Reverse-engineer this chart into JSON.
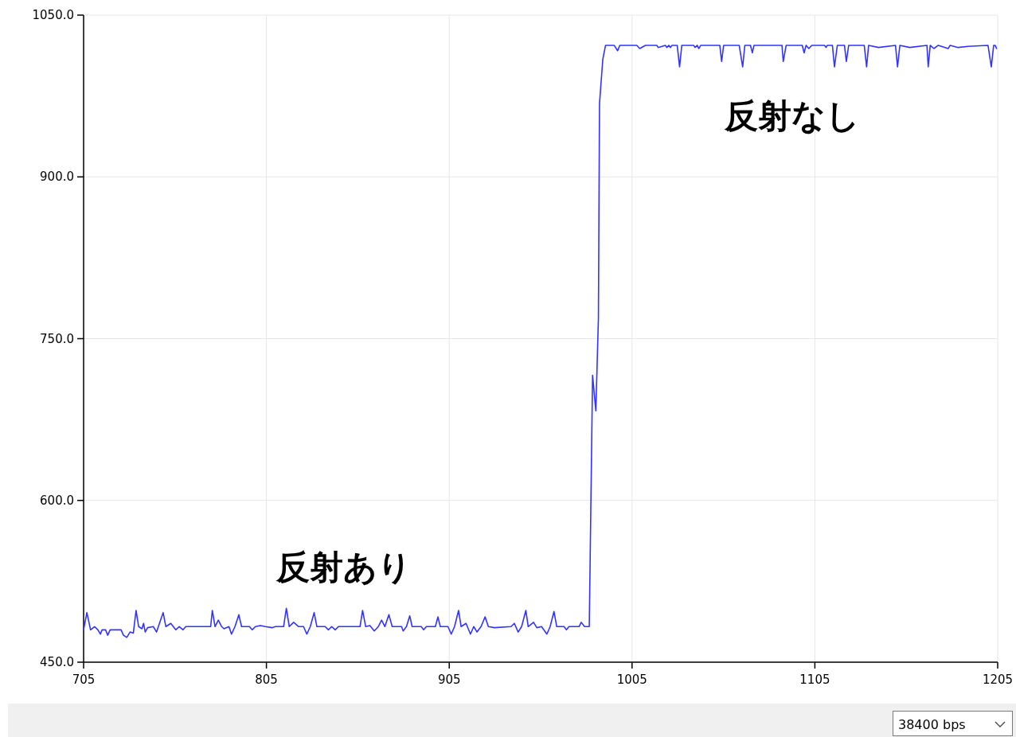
{
  "chart_data": {
    "type": "line",
    "series": [
      {
        "color": "#3333ff",
        "x": [
          705,
          706.8,
          708.8,
          711.0,
          712.8,
          714.2,
          715.1,
          717.0,
          718.2,
          719.5,
          725.5,
          726.8,
          728.6,
          730.4,
          732.2,
          733.7,
          735.1,
          736.9,
          737.8,
          738.7,
          740.0,
          743.1,
          744.9,
          748.5,
          750.0,
          752.7,
          755.4,
          757.3,
          759.4,
          760.9,
          774.5,
          775.4,
          776.9,
          778.7,
          780.5,
          781.8,
          784.5,
          785.9,
          787.8,
          789.9,
          791.4,
          795.7,
          797.2,
          799.0,
          801.7,
          804.4,
          808.1,
          809.9,
          814.4,
          815.9,
          817.5,
          819.9,
          822.6,
          825.3,
          827.1,
          829.0,
          831.1,
          832.6,
          837.1,
          838.9,
          840.7,
          842.6,
          844.4,
          856.2,
          857.6,
          859.3,
          861.6,
          864.0,
          866.2,
          868.0,
          869.8,
          872.0,
          873.8,
          878.9,
          879.8,
          881.6,
          883.4,
          884.7,
          889.7,
          891.0,
          892.5,
          897.4,
          898.8,
          900.1,
          904.3,
          906.1,
          907.9,
          910.1,
          911.5,
          914.2,
          916.6,
          918.4,
          920.2,
          922.4,
          924.6,
          926.4,
          929.7,
          938.8,
          940.6,
          942.7,
          944.6,
          946.9,
          948.2,
          951.1,
          952.9,
          955.5,
          958.4,
          960.2,
          962.3,
          963.8,
          967.8,
          969.1,
          970.5,
          976.0,
          977.2,
          979.0,
          981.6,
          983.4,
          985.2,
          986.6,
          987.2,
          989.0,
          990.5,
          995.2,
          997.1,
          998.3,
          1007.6,
          1009.2,
          1012.3,
          1018.5,
          1019.3,
          1023.2,
          1024.0,
          1025.1,
          1026.0,
          1026.8,
          1029.7,
          1031.0,
          1032.2,
          1038.7,
          1039.5,
          1040.6,
          1041.5,
          1042.6,
          1053.0,
          1054.0,
          1055.1,
          1063.6,
          1065.5,
          1066.7,
          1069.8,
          1070.8,
          1071.7,
          1087.0,
          1087.7,
          1089.3,
          1098.1,
          1099.1,
          1100.2,
          1101.7,
          1103.3,
          1110.3,
          1111.1,
          1111.8,
          1114.6,
          1115.7,
          1117.3,
          1121.2,
          1122.2,
          1123.5,
          1132.0,
          1133.3,
          1134.4,
          1139.8,
          1149.1,
          1150.2,
          1151.5,
          1156.9,
          1166.3,
          1167.0,
          1168.1,
          1170.1,
          1172.5,
          1177.9,
          1179.0,
          1183.4,
          1188.8,
          1199.7,
          1201.5,
          1202.8,
          1203.6,
          1204.4
        ],
        "values": [
          480,
          496,
          480,
          483,
          480,
          476,
          480,
          480,
          475,
          480,
          480,
          475,
          473,
          478,
          477,
          498,
          483,
          481,
          486,
          478,
          482,
          483,
          478,
          496,
          483,
          486,
          480,
          483,
          480,
          483,
          483,
          498,
          483,
          489,
          483,
          481,
          483,
          476,
          483,
          494,
          483,
          483,
          480,
          483,
          484,
          483,
          482,
          483,
          483,
          500,
          483,
          487,
          483,
          483,
          476,
          483,
          496,
          483,
          483,
          480,
          483,
          480,
          483,
          483,
          498,
          483,
          484,
          479,
          483,
          489,
          483,
          494,
          483,
          483,
          479,
          483,
          493,
          483,
          483,
          480,
          483,
          483,
          492,
          483,
          483,
          476,
          483,
          498,
          483,
          486,
          476,
          483,
          478,
          483,
          492,
          483,
          482,
          483,
          486,
          478,
          483,
          498,
          483,
          487,
          482,
          483,
          476,
          483,
          497,
          483,
          483,
          480,
          483,
          483,
          487,
          483,
          483,
          716,
          683,
          769,
          968,
          1009,
          1022,
          1022,
          1017,
          1022,
          1022,
          1019,
          1022,
          1022,
          1020,
          1022,
          1020,
          1022,
          1020,
          1022,
          1022,
          1002,
          1022,
          1022,
          1020,
          1022,
          1019,
          1022,
          1022,
          1007,
          1022,
          1022,
          1002,
          1022,
          1022,
          1015,
          1022,
          1022,
          1007,
          1022,
          1022,
          1015,
          1022,
          1019,
          1022,
          1022,
          1020,
          1022,
          1022,
          1002,
          1022,
          1022,
          1007,
          1022,
          1022,
          1002,
          1022,
          1020,
          1022,
          1002,
          1022,
          1020,
          1022,
          1002,
          1022,
          1019,
          1022,
          1019,
          1022,
          1020,
          1021,
          1022,
          1002,
          1022,
          1022,
          1019
        ]
      }
    ],
    "xlim": [
      705,
      1205
    ],
    "ylim": [
      450,
      1050
    ],
    "xticks": [
      705,
      805,
      905,
      1005,
      1105,
      1205
    ],
    "yticks": [
      {
        "value": 450,
        "label": "450.0"
      },
      {
        "value": 600,
        "label": "600.0"
      },
      {
        "value": 750,
        "label": "750.0"
      },
      {
        "value": 900,
        "label": "900.0"
      },
      {
        "value": 1050,
        "label": "1050.0"
      }
    ],
    "grid": true,
    "marker": "none",
    "line_style": "solid",
    "annotations": [
      "反射あり",
      "反射なし",
      "38400 bps"
    ]
  }
}
